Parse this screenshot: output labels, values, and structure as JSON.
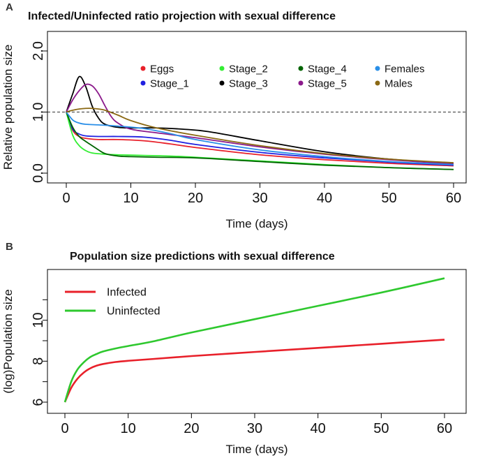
{
  "chart_data": [
    {
      "panel": "A",
      "type": "line",
      "title": "Infected/Uninfected ratio projection with sexual difference",
      "xlabel": "Time (days)",
      "ylabel": "Relative population size",
      "xlim": [
        0,
        60
      ],
      "ylim": [
        0,
        2
      ],
      "xticks": [
        0,
        10,
        20,
        30,
        40,
        50,
        60
      ],
      "yticks": [
        0.0,
        1.0,
        2.0
      ],
      "ytick_labels": [
        "0.0",
        "1.0",
        "2.0"
      ],
      "reference_line": 1.0,
      "legend_position": "top-right",
      "series": [
        {
          "name": "Eggs",
          "color": "#e8202a",
          "x": [
            0,
            1,
            2,
            3,
            5,
            8,
            12,
            16,
            20,
            30,
            40,
            50,
            60
          ],
          "y": [
            1.0,
            0.7,
            0.6,
            0.57,
            0.55,
            0.55,
            0.53,
            0.48,
            0.42,
            0.3,
            0.22,
            0.16,
            0.12
          ]
        },
        {
          "name": "Stage_1",
          "color": "#2020e0",
          "x": [
            0,
            1,
            2,
            3,
            5,
            8,
            12,
            16,
            20,
            30,
            40,
            50,
            60
          ],
          "y": [
            1.0,
            0.72,
            0.64,
            0.61,
            0.6,
            0.6,
            0.59,
            0.54,
            0.47,
            0.34,
            0.25,
            0.18,
            0.13
          ]
        },
        {
          "name": "Stage_2",
          "color": "#33ee33",
          "x": [
            0,
            1,
            2,
            3,
            4,
            6,
            8,
            12,
            16,
            20,
            30,
            40,
            50,
            60
          ],
          "y": [
            1.0,
            0.62,
            0.45,
            0.37,
            0.33,
            0.31,
            0.3,
            0.29,
            0.28,
            0.26,
            0.2,
            0.14,
            0.09,
            0.06
          ]
        },
        {
          "name": "Stage_3",
          "color": "#000000",
          "x": [
            0,
            1,
            2,
            3,
            4,
            5,
            6,
            8,
            10,
            14,
            18,
            22,
            30,
            40,
            50,
            60
          ],
          "y": [
            1.0,
            1.3,
            1.58,
            1.42,
            1.1,
            0.9,
            0.8,
            0.75,
            0.74,
            0.74,
            0.72,
            0.68,
            0.53,
            0.35,
            0.23,
            0.16
          ]
        },
        {
          "name": "Stage_4",
          "color": "#006400",
          "x": [
            0,
            1,
            2,
            3,
            4,
            5,
            6,
            8,
            10,
            14,
            20,
            30,
            40,
            50,
            60
          ],
          "y": [
            1.0,
            0.75,
            0.6,
            0.52,
            0.45,
            0.38,
            0.32,
            0.28,
            0.27,
            0.26,
            0.25,
            0.19,
            0.13,
            0.09,
            0.06
          ]
        },
        {
          "name": "Stage_5",
          "color": "#8b1a8b",
          "x": [
            0,
            1,
            2,
            3,
            4,
            5,
            6,
            7,
            8,
            10,
            14,
            20,
            30,
            40,
            50,
            60
          ],
          "y": [
            1.0,
            1.2,
            1.35,
            1.45,
            1.43,
            1.3,
            1.1,
            0.92,
            0.82,
            0.72,
            0.66,
            0.58,
            0.43,
            0.31,
            0.22,
            0.15
          ]
        },
        {
          "name": "Females",
          "color": "#2a8fe8",
          "x": [
            0,
            1,
            2,
            3,
            5,
            8,
            12,
            16,
            20,
            30,
            40,
            50,
            60
          ],
          "y": [
            1.0,
            0.87,
            0.82,
            0.8,
            0.79,
            0.77,
            0.73,
            0.65,
            0.55,
            0.38,
            0.27,
            0.19,
            0.14
          ]
        },
        {
          "name": "Males",
          "color": "#8b6914",
          "x": [
            0,
            1,
            2,
            3,
            4,
            5,
            6,
            8,
            10,
            14,
            20,
            30,
            40,
            50,
            60
          ],
          "y": [
            1.0,
            1.03,
            1.05,
            1.06,
            1.06,
            1.05,
            1.03,
            0.95,
            0.86,
            0.74,
            0.62,
            0.45,
            0.32,
            0.23,
            0.17
          ]
        }
      ]
    },
    {
      "panel": "B",
      "type": "line",
      "title": "Population size predictions with sexual difference",
      "xlabel": "Time (days)",
      "ylabel": "(log)Population size",
      "xlim": [
        0,
        60
      ],
      "ylim": [
        6,
        12
      ],
      "xticks": [
        0,
        10,
        20,
        30,
        40,
        50,
        60
      ],
      "yticks": [
        6,
        8,
        10
      ],
      "ytick_labels": [
        "6",
        "8",
        "10"
      ],
      "legend_position": "top-left",
      "series": [
        {
          "name": "Infected",
          "color": "#e8202a",
          "x": [
            0,
            1,
            2,
            3,
            4,
            5,
            6,
            8,
            10,
            14,
            20,
            30,
            40,
            50,
            60
          ],
          "y": [
            6.0,
            6.7,
            7.15,
            7.45,
            7.65,
            7.78,
            7.86,
            7.96,
            8.02,
            8.11,
            8.25,
            8.45,
            8.65,
            8.85,
            9.05
          ]
        },
        {
          "name": "Uninfected",
          "color": "#2ec82e",
          "x": [
            0,
            1,
            2,
            3,
            4,
            5,
            6,
            8,
            10,
            14,
            20,
            30,
            40,
            50,
            60
          ],
          "y": [
            6.0,
            7.0,
            7.6,
            7.95,
            8.2,
            8.35,
            8.47,
            8.62,
            8.74,
            8.97,
            9.4,
            10.05,
            10.7,
            11.35,
            12.05
          ]
        }
      ]
    }
  ]
}
